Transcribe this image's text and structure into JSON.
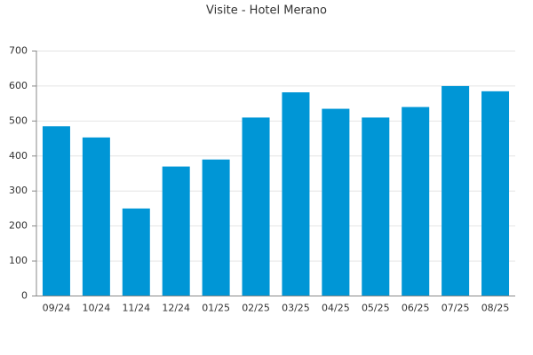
{
  "chart_data": {
    "type": "bar",
    "title": "Visite - Hotel Merano",
    "categories": [
      "09/24",
      "10/24",
      "11/24",
      "12/24",
      "01/25",
      "02/25",
      "03/25",
      "04/25",
      "05/25",
      "06/25",
      "07/25",
      "08/25"
    ],
    "values": [
      485,
      453,
      250,
      370,
      390,
      510,
      582,
      535,
      510,
      540,
      600,
      585
    ],
    "color": "#0096d6",
    "ylim": [
      0,
      700
    ],
    "yticks": [
      0,
      100,
      200,
      300,
      400,
      500,
      600,
      700
    ],
    "grid": true
  }
}
